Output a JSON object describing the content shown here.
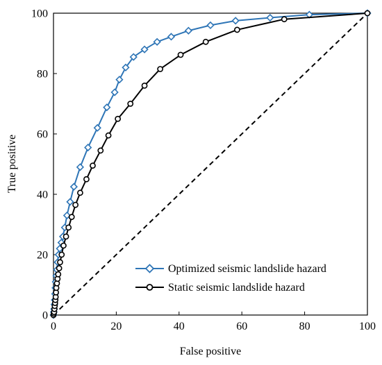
{
  "chart_data": {
    "type": "line",
    "title": "",
    "xlabel": "False positive",
    "ylabel": "True positive",
    "xlim": [
      0,
      100
    ],
    "ylim": [
      0,
      100
    ],
    "xticks": [
      0,
      20,
      40,
      60,
      80,
      100
    ],
    "yticks": [
      0,
      20,
      40,
      60,
      80,
      100
    ],
    "grid": false,
    "legend_position": "bottom-right",
    "reference_line": {
      "style": "dashed",
      "from": [
        0,
        0
      ],
      "to": [
        100,
        100
      ]
    },
    "series": [
      {
        "name": "Optimized seismic landslide hazard",
        "color": "#2e75b6",
        "marker": "diamond",
        "points": [
          [
            0,
            0
          ],
          [
            0.1,
            1
          ],
          [
            0.2,
            2
          ],
          [
            0.3,
            3.5
          ],
          [
            0.4,
            5
          ],
          [
            0.5,
            7
          ],
          [
            0.6,
            9
          ],
          [
            0.7,
            11
          ],
          [
            0.9,
            13
          ],
          [
            1.1,
            15
          ],
          [
            1.3,
            17.5
          ],
          [
            1.6,
            20
          ],
          [
            2.0,
            22
          ],
          [
            2.5,
            24
          ],
          [
            3.0,
            26
          ],
          [
            3.6,
            29
          ],
          [
            4.3,
            33
          ],
          [
            5.3,
            37.5
          ],
          [
            6.5,
            42.5
          ],
          [
            8.5,
            49
          ],
          [
            11,
            55.5
          ],
          [
            14,
            62
          ],
          [
            17,
            68.8
          ],
          [
            19.5,
            73.8
          ],
          [
            21,
            78
          ],
          [
            23,
            82
          ],
          [
            25.5,
            85.5
          ],
          [
            29,
            88
          ],
          [
            33,
            90.5
          ],
          [
            37.5,
            92.2
          ],
          [
            43,
            94.2
          ],
          [
            50,
            96
          ],
          [
            58,
            97.5
          ],
          [
            69,
            98.5
          ],
          [
            81.5,
            99.5
          ],
          [
            100,
            100
          ]
        ]
      },
      {
        "name": "Static seismic landslide hazard",
        "color": "#000000",
        "marker": "circle",
        "points": [
          [
            0,
            0
          ],
          [
            0.1,
            0.5
          ],
          [
            0.2,
            1
          ],
          [
            0.3,
            2
          ],
          [
            0.4,
            3
          ],
          [
            0.5,
            4
          ],
          [
            0.6,
            5
          ],
          [
            0.7,
            6
          ],
          [
            0.8,
            7.5
          ],
          [
            0.9,
            9
          ],
          [
            1.1,
            10.5
          ],
          [
            1.3,
            12
          ],
          [
            1.5,
            13.5
          ],
          [
            1.8,
            15.5
          ],
          [
            2.1,
            17.5
          ],
          [
            2.6,
            20
          ],
          [
            3.2,
            23
          ],
          [
            4.0,
            26
          ],
          [
            4.8,
            29
          ],
          [
            5.8,
            32.5
          ],
          [
            7.0,
            36.5
          ],
          [
            8.5,
            40.5
          ],
          [
            10.5,
            45
          ],
          [
            12.5,
            49.5
          ],
          [
            15,
            54.5
          ],
          [
            17.5,
            59.5
          ],
          [
            20.5,
            65
          ],
          [
            24.5,
            70
          ],
          [
            29,
            76
          ],
          [
            34,
            81.5
          ],
          [
            40.5,
            86.2
          ],
          [
            48.5,
            90.5
          ],
          [
            58.5,
            94.5
          ],
          [
            73.5,
            98
          ],
          [
            100,
            100
          ]
        ]
      }
    ]
  }
}
